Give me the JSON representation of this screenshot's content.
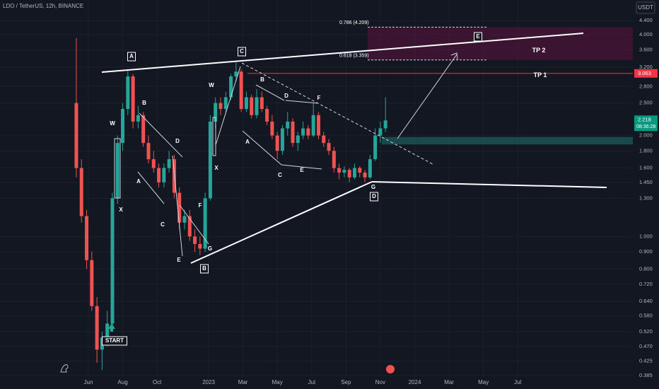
{
  "chart_data": {
    "type": "candlestick",
    "title": "LDO / TetherUS, 12h, BINANCE",
    "currency": "USDT",
    "log_scale": true,
    "grid": true,
    "up_color": "#26a69a",
    "down_color": "#ef5350",
    "x": [
      4.3,
      4.6,
      4.9,
      5.2,
      5.5,
      5.8,
      6.1,
      6.4,
      6.7,
      7.0,
      7.3,
      7.6,
      7.9,
      8.2,
      8.5,
      8.8,
      9.1,
      9.4,
      9.7,
      10.0,
      10.3,
      10.6,
      10.9,
      11.2,
      11.5,
      11.8,
      12.1,
      12.4,
      12.7,
      13.0,
      13.3,
      13.6,
      13.9,
      14.2,
      14.5,
      14.8,
      15.1,
      15.4,
      15.7,
      16.0,
      16.3,
      16.6,
      16.9,
      17.2,
      17.5,
      17.8,
      18.1,
      18.4,
      18.7,
      19.0,
      19.3,
      19.6,
      19.9,
      20.2,
      20.5,
      20.8,
      21.1,
      21.4,
      21.7,
      22.0,
      22.3
    ],
    "open": [
      2.5,
      1.6,
      1.15,
      0.85,
      0.62,
      0.46,
      0.5,
      0.55,
      1.3,
      1.9,
      2.4,
      3.0,
      2.2,
      2.3,
      1.9,
      1.7,
      1.6,
      1.45,
      1.6,
      1.7,
      1.35,
      1.1,
      1.15,
      1.0,
      0.95,
      0.92,
      1.3,
      2.2,
      2.5,
      2.4,
      2.6,
      3.0,
      3.1,
      2.4,
      2.6,
      2.3,
      2.6,
      2.4,
      2.2,
      2.0,
      1.8,
      2.1,
      2.2,
      1.9,
      2.0,
      2.1,
      2.0,
      2.3,
      2.0,
      1.9,
      1.8,
      1.6,
      1.55,
      1.58,
      1.5,
      1.6,
      1.55,
      1.5,
      1.7,
      2.0,
      2.1
    ],
    "high": [
      3.9,
      1.7,
      1.2,
      0.9,
      0.66,
      0.52,
      0.6,
      1.35,
      2.0,
      2.5,
      3.15,
      3.05,
      2.45,
      2.35,
      2.0,
      1.8,
      1.65,
      1.65,
      1.8,
      1.75,
      1.4,
      1.2,
      1.2,
      1.05,
      1.0,
      1.35,
      2.3,
      2.6,
      2.6,
      2.7,
      3.05,
      3.3,
      3.15,
      2.7,
      2.65,
      2.75,
      2.7,
      2.45,
      2.3,
      2.05,
      2.15,
      2.35,
      2.25,
      2.05,
      2.2,
      2.15,
      2.5,
      2.35,
      2.05,
      1.95,
      1.85,
      1.65,
      1.62,
      1.6,
      1.65,
      1.62,
      1.58,
      1.75,
      2.1,
      2.2,
      2.6
    ],
    "low": [
      1.5,
      1.1,
      0.8,
      0.6,
      0.42,
      0.4,
      0.47,
      0.53,
      1.25,
      1.8,
      2.3,
      2.1,
      2.1,
      1.85,
      1.65,
      1.55,
      1.4,
      1.4,
      1.55,
      1.3,
      1.05,
      1.05,
      0.97,
      0.9,
      0.88,
      0.9,
      1.28,
      2.1,
      2.3,
      2.35,
      2.55,
      2.9,
      2.35,
      2.35,
      2.25,
      2.25,
      2.35,
      2.15,
      1.95,
      1.7,
      1.75,
      2.0,
      1.85,
      1.8,
      1.95,
      1.95,
      1.98,
      1.95,
      1.85,
      1.75,
      1.55,
      1.48,
      1.5,
      1.45,
      1.48,
      1.5,
      1.45,
      1.48,
      1.68,
      1.9,
      2.05
    ],
    "close": [
      1.6,
      1.15,
      0.85,
      0.62,
      0.46,
      0.5,
      0.55,
      1.3,
      1.9,
      2.4,
      3.0,
      2.2,
      2.3,
      1.9,
      1.7,
      1.6,
      1.45,
      1.6,
      1.7,
      1.35,
      1.1,
      1.15,
      1.0,
      0.95,
      0.92,
      1.3,
      2.2,
      2.5,
      2.4,
      2.6,
      3.0,
      3.1,
      2.4,
      2.6,
      2.3,
      2.6,
      2.4,
      2.2,
      2.0,
      1.8,
      2.1,
      2.2,
      1.9,
      2.0,
      2.1,
      2.0,
      2.3,
      2.0,
      1.9,
      1.8,
      1.6,
      1.55,
      1.58,
      1.5,
      1.6,
      1.55,
      1.5,
      1.7,
      2.0,
      2.1,
      2.218
    ],
    "xlim": [
      -0.144,
      36.7
    ],
    "xticks": [
      {
        "value": 5,
        "label": "Jun"
      },
      {
        "value": 7,
        "label": "Aug"
      },
      {
        "value": 9,
        "label": "Oct"
      },
      {
        "value": 12,
        "label": "2023"
      },
      {
        "value": 14,
        "label": "Mar"
      },
      {
        "value": 16,
        "label": "May"
      },
      {
        "value": 18,
        "label": "Jul"
      },
      {
        "value": 20,
        "label": "Sep"
      },
      {
        "value": 22,
        "label": "Nov"
      },
      {
        "value": 24,
        "label": "2024"
      },
      {
        "value": 26,
        "label": "Mar"
      },
      {
        "value": 28,
        "label": "May"
      },
      {
        "value": 30,
        "label": "Jul"
      }
    ],
    "ylim": [
      0.383,
      5.07
    ],
    "yticks": [
      {
        "value": 4.4,
        "label": "4.400"
      },
      {
        "value": 4,
        "label": "4.000"
      },
      {
        "value": 3.6,
        "label": "3.600"
      },
      {
        "value": 3.2,
        "label": "3.200"
      },
      {
        "value": 2.8,
        "label": "2.800"
      },
      {
        "value": 2.5,
        "label": "2.500"
      },
      {
        "value": 2,
        "label": "2.000"
      },
      {
        "value": 1.8,
        "label": "1.800"
      },
      {
        "value": 1.6,
        "label": "1.600"
      },
      {
        "value": 1.45,
        "label": "1.450"
      },
      {
        "value": 1.3,
        "label": "1.300"
      },
      {
        "value": 1,
        "label": "1.000"
      },
      {
        "value": 0.9,
        "label": "0.900"
      },
      {
        "value": 0.8,
        "label": "0.800"
      },
      {
        "value": 0.72,
        "label": "0.720"
      },
      {
        "value": 0.64,
        "label": "0.640"
      },
      {
        "value": 0.58,
        "label": "0.580"
      },
      {
        "value": 0.52,
        "label": "0.520"
      },
      {
        "value": 0.47,
        "label": "0.470"
      },
      0.425,
      0.385
    ],
    "fib_levels": [
      {
        "value": 4.209,
        "label": "0.786 (4.209)"
      },
      {
        "value": 3.359,
        "label": "0.618 (3.359)"
      }
    ],
    "tp_labels": [
      "TP 2",
      "TP 1"
    ],
    "tp1_price": 3.063,
    "current_price": 2.218,
    "countdown": "08:36:28",
    "support_zone": [
      1.88,
      1.98
    ],
    "annotations": [
      "A",
      "W",
      "X",
      "B",
      "A",
      "C",
      "D",
      "E",
      "F",
      "G",
      "B",
      "W",
      "X",
      "C",
      "B",
      "A",
      "C",
      "D",
      "E",
      "F",
      "G",
      "D",
      "E",
      "START"
    ]
  }
}
